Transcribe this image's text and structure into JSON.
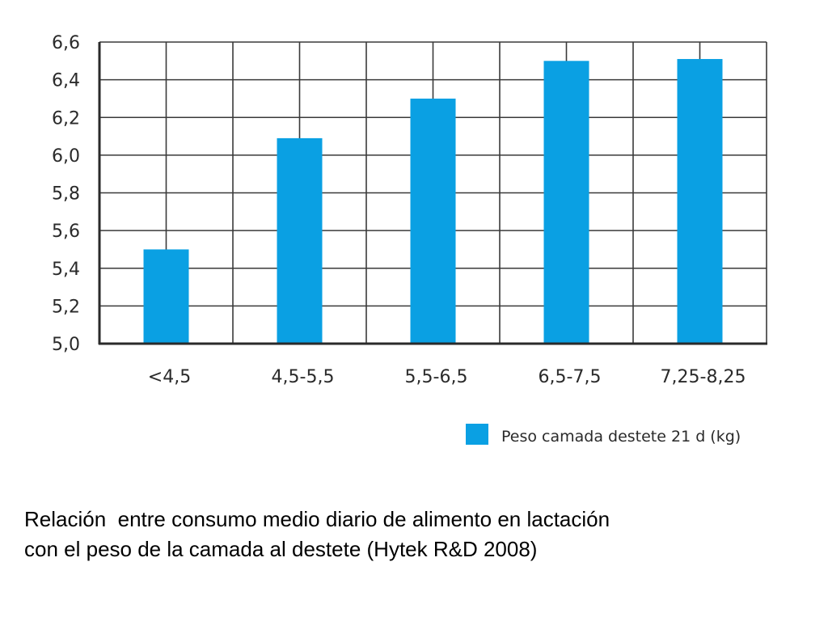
{
  "chart_data": {
    "type": "bar",
    "categories": [
      "<4,5",
      "4,5-5,5",
      "5,5-6,5",
      "6,5-7,5",
      "7,25-8,25"
    ],
    "series": [
      {
        "name": "Peso camada destete 21 d (kg)",
        "values": [
          5.5,
          6.09,
          6.3,
          6.5,
          6.51
        ],
        "color": "#0aa0e3"
      }
    ],
    "ylim": [
      5.0,
      6.6
    ],
    "yticks": [
      5.0,
      5.2,
      5.4,
      5.6,
      5.8,
      6.0,
      6.2,
      6.4,
      6.6
    ],
    "ytick_labels": [
      "5,0",
      "5,2",
      "5,4",
      "5,6",
      "5,8",
      "6,0",
      "6,2",
      "6,4",
      "6,6"
    ],
    "grid": true,
    "legend_position": "bottom-right",
    "title": "",
    "xlabel": "",
    "ylabel": ""
  },
  "caption": {
    "line1": "Relación  entre consumo medio diario de alimento en lactación",
    "line2": "con el peso de la camada al destete (Hytek R&D 2008)"
  }
}
